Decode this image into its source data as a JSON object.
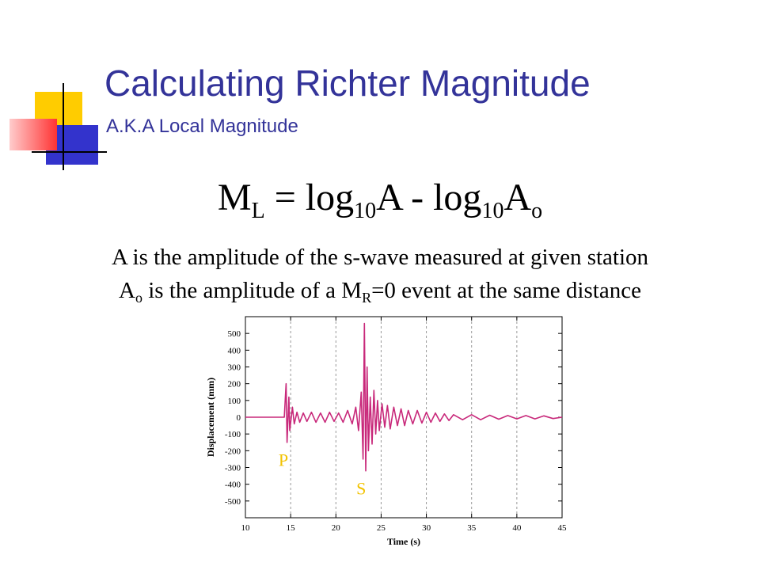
{
  "slide": {
    "title": "Calculating Richter Magnitude",
    "subtitle": "A.K.A Local Magnitude"
  },
  "formula": {
    "m": "M",
    "l": "L",
    "mid1": " = log",
    "b1": "10",
    "mid2": "A - log",
    "b2": "10",
    "a": "A",
    "o": "o"
  },
  "definitions": {
    "line1": "A is the amplitude of the s-wave measured at given station",
    "line2_a": "A",
    "line2_o": "o",
    "line2_mid": " is the amplitude of a M",
    "line2_r": "R",
    "line2_end": "=0 event at the same distance"
  },
  "colors": {
    "title": "#333399",
    "trace": "#c8287a",
    "phase_label": "#f2c200",
    "deco_yellow": "#ffcc00",
    "deco_blue": "#3333cc",
    "deco_red": "#ff3333"
  },
  "chart_data": {
    "type": "line",
    "xlabel": "Time (s)",
    "ylabel": "Displacement (mm)",
    "xlim": [
      10,
      45
    ],
    "ylim": [
      -600,
      600
    ],
    "x_ticks": [
      10,
      15,
      20,
      25,
      30,
      35,
      40,
      45
    ],
    "y_ticks": [
      500,
      400,
      300,
      200,
      100,
      0,
      -100,
      -200,
      -300,
      -400,
      -500
    ],
    "vertical_gridlines": [
      15,
      20,
      25,
      30,
      35,
      40
    ],
    "annotations": [
      {
        "text": "P",
        "x": 14.2,
        "y": -290
      },
      {
        "text": "S",
        "x": 22.8,
        "y": -460
      }
    ],
    "series": [
      {
        "x": [
          10,
          12,
          14.3,
          14.5,
          14.6,
          14.8,
          14.9,
          15.2,
          15.4,
          15.7,
          16,
          16.4,
          16.8,
          17.3,
          17.8,
          18.3,
          18.8,
          19.3,
          19.8,
          20.3,
          20.8,
          21.3,
          21.8,
          22.2,
          22.5,
          22.8,
          23.0,
          23.15,
          23.3,
          23.45,
          23.6,
          23.8,
          24.0,
          24.2,
          24.4,
          24.6,
          24.8,
          25.1,
          25.4,
          25.7,
          26.0,
          26.4,
          26.8,
          27.2,
          27.6,
          28.0,
          28.5,
          29.0,
          29.5,
          30.0,
          30.5,
          31.0,
          31.5,
          32.0,
          32.5,
          33.0,
          34,
          35,
          36,
          37,
          38,
          39,
          40,
          41,
          42,
          43,
          44,
          45
        ],
        "y": [
          0,
          0,
          0,
          200,
          -150,
          120,
          -80,
          60,
          -40,
          30,
          -30,
          25,
          -25,
          30,
          -30,
          25,
          -30,
          30,
          -25,
          25,
          -30,
          40,
          -40,
          60,
          -80,
          150,
          -250,
          560,
          -320,
          300,
          -200,
          120,
          -160,
          160,
          -100,
          100,
          -80,
          80,
          -60,
          70,
          -70,
          60,
          -50,
          50,
          -50,
          40,
          -40,
          40,
          -35,
          30,
          -30,
          25,
          -25,
          20,
          -20,
          15,
          -15,
          15,
          -15,
          12,
          -12,
          10,
          -10,
          10,
          -10,
          8,
          -8,
          0
        ]
      }
    ]
  }
}
